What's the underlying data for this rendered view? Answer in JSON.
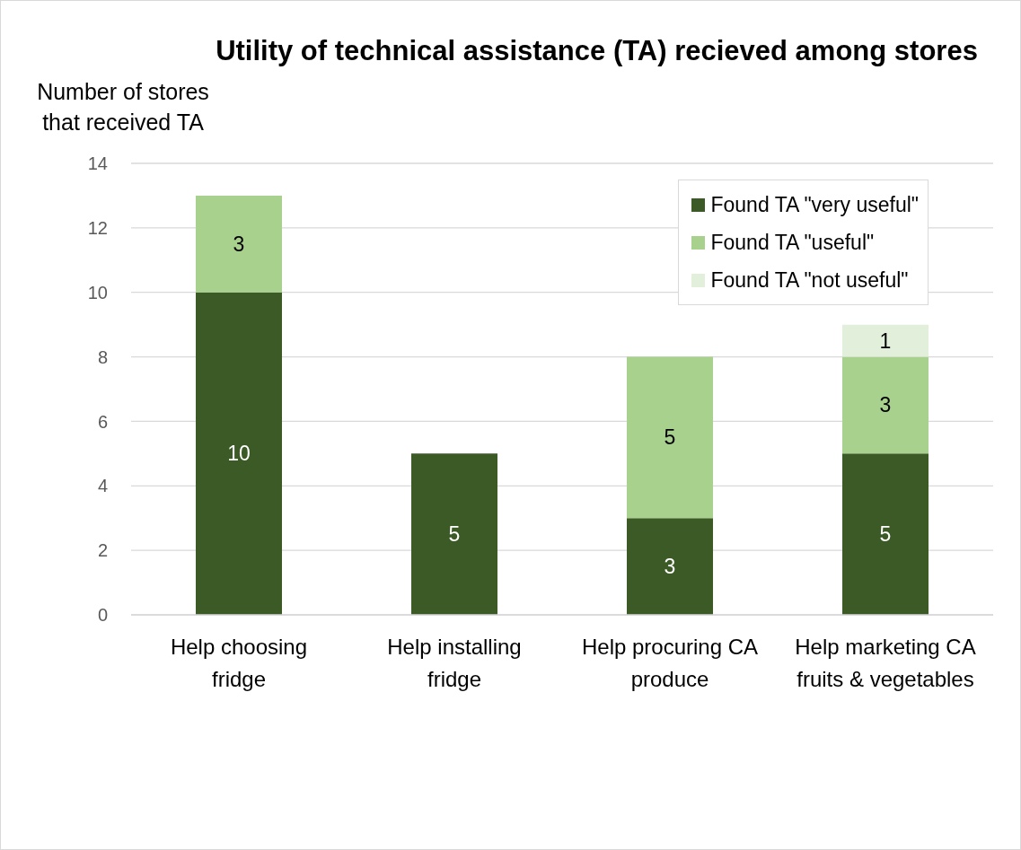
{
  "chart_data": {
    "type": "bar",
    "title": "Utility of technical assistance (TA) recieved among stores",
    "ylabel": "Number of stores that received TA",
    "categories": [
      "Help choosing fridge",
      "Help installing fridge",
      "Help procuring CA produce",
      "Help marketing CA fruits & vegetables"
    ],
    "series": [
      {
        "name": "Found TA \"very useful\"",
        "color": "#3b5a25",
        "values": [
          10,
          5,
          3,
          5
        ]
      },
      {
        "name": "Found TA \"useful\"",
        "color": "#a9d18e",
        "values": [
          3,
          null,
          5,
          3
        ]
      },
      {
        "name": "Found TA \"not useful\"",
        "color": "#e2efda",
        "values": [
          null,
          null,
          null,
          1
        ]
      }
    ],
    "stacked": true,
    "ylim": [
      0,
      14
    ],
    "yticks": [
      0,
      2,
      4,
      6,
      8,
      10,
      12,
      14
    ],
    "grid": "y",
    "legend": "top right",
    "data_labels": true
  }
}
